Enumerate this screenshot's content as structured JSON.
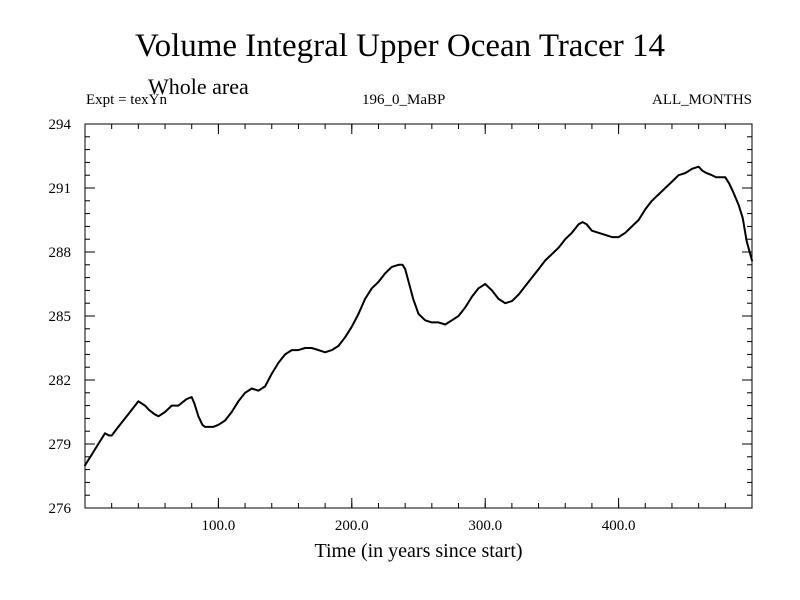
{
  "chart_data": {
    "type": "line",
    "title": "Volume Integral Upper Ocean Tracer 14",
    "subtitle": "Whole area",
    "header_left": "Expt = texYn",
    "header_center": "196_0_MaBP",
    "header_right": "ALL_MONTHS",
    "xlabel": "Time (in years since start)",
    "ylabel": "",
    "xlim": [
      0,
      500
    ],
    "ylim": [
      276,
      294
    ],
    "xticks": [
      100,
      200,
      300,
      400
    ],
    "xtick_labels": [
      "100.0",
      "200.0",
      "300.0",
      "400.0"
    ],
    "yticks": [
      276,
      279,
      282,
      285,
      288,
      291,
      294
    ],
    "ytick_labels": [
      "276",
      "279",
      "282",
      "285",
      "288",
      "291",
      "294"
    ],
    "grid": false,
    "line_color": "#000000",
    "series": [
      {
        "x": [
          0,
          5,
          10,
          15,
          18,
          20,
          25,
          30,
          35,
          40,
          45,
          48,
          52,
          55,
          60,
          65,
          70,
          72,
          76,
          80,
          82,
          85,
          88,
          90,
          93,
          96,
          100,
          105,
          110,
          115,
          120,
          125,
          130,
          135,
          140,
          145,
          150,
          155,
          160,
          165,
          170,
          175,
          180,
          185,
          190,
          195,
          200,
          205,
          210,
          215,
          220,
          225,
          230,
          235,
          238,
          240,
          243,
          246,
          250,
          255,
          260,
          265,
          270,
          275,
          280,
          285,
          290,
          295,
          300,
          305,
          310,
          315,
          320,
          325,
          330,
          335,
          340,
          345,
          350,
          355,
          360,
          365,
          370,
          373,
          376,
          380,
          385,
          390,
          395,
          400,
          405,
          410,
          415,
          420,
          425,
          430,
          435,
          440,
          445,
          450,
          455,
          460,
          463,
          466,
          470,
          473,
          477,
          480,
          483,
          486,
          490,
          493,
          496,
          500
        ],
        "y": [
          278.0,
          278.5,
          279.0,
          279.5,
          279.4,
          279.4,
          279.8,
          280.2,
          280.6,
          281.0,
          280.8,
          280.6,
          280.4,
          280.3,
          280.5,
          280.8,
          280.8,
          280.9,
          281.1,
          281.2,
          280.9,
          280.3,
          279.9,
          279.8,
          279.8,
          279.8,
          279.9,
          280.1,
          280.5,
          281.0,
          281.4,
          281.6,
          281.5,
          281.7,
          282.3,
          282.8,
          283.2,
          283.4,
          283.4,
          283.5,
          283.5,
          283.4,
          283.3,
          283.4,
          283.6,
          284.0,
          284.5,
          285.1,
          285.8,
          286.3,
          286.6,
          287.0,
          287.3,
          287.4,
          287.4,
          287.2,
          286.5,
          285.8,
          285.1,
          284.8,
          284.7,
          284.7,
          284.6,
          284.8,
          285.0,
          285.4,
          285.9,
          286.3,
          286.5,
          286.2,
          285.8,
          285.6,
          285.7,
          286.0,
          286.4,
          286.8,
          287.2,
          287.6,
          287.9,
          288.2,
          288.6,
          288.9,
          289.3,
          289.4,
          289.3,
          289.0,
          288.9,
          288.8,
          288.7,
          288.7,
          288.9,
          289.2,
          289.5,
          290.0,
          290.4,
          290.7,
          291.0,
          291.3,
          291.6,
          291.7,
          291.9,
          292.0,
          291.8,
          291.7,
          291.6,
          291.5,
          291.5,
          291.5,
          291.2,
          290.8,
          290.2,
          289.6,
          288.5,
          287.6
        ]
      }
    ]
  }
}
